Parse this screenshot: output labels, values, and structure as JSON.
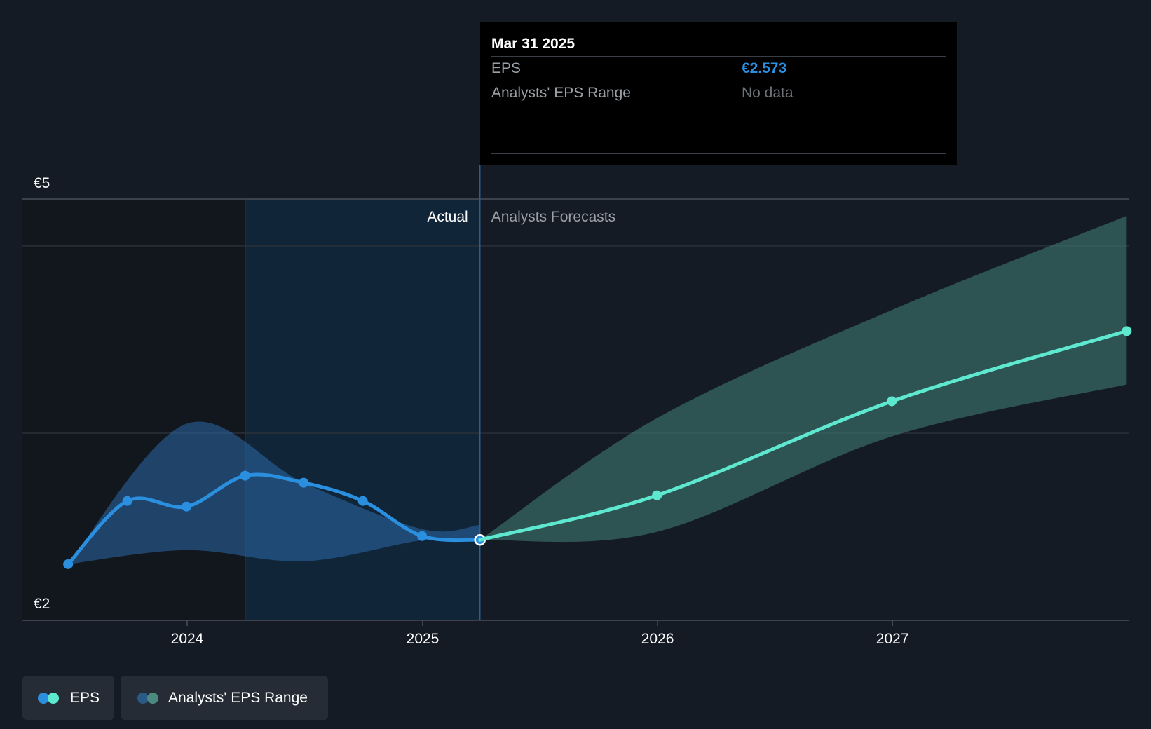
{
  "chart_data": {
    "type": "line",
    "y_axis": {
      "labels": [
        "€5",
        "€2"
      ],
      "ylim": [
        2,
        5
      ],
      "gridlines": [
        2,
        3.333,
        4.666,
        5
      ]
    },
    "x_axis": {
      "ticks": [
        "2024",
        "2025",
        "2026",
        "2027"
      ]
    },
    "regions": {
      "actual_label": "Actual",
      "forecast_label": "Analysts Forecasts"
    },
    "series": [
      {
        "name": "EPS",
        "color": "#2b8fe0",
        "points": [
          {
            "x": "2023-06-30",
            "y": 2.4
          },
          {
            "x": "2023-09-30",
            "y": 2.85
          },
          {
            "x": "2023-12-31",
            "y": 2.81
          },
          {
            "x": "2024-03-31",
            "y": 3.03
          },
          {
            "x": "2024-06-30",
            "y": 2.98
          },
          {
            "x": "2024-09-30",
            "y": 2.85
          },
          {
            "x": "2024-12-31",
            "y": 2.6
          },
          {
            "x": "2025-03-31",
            "y": 2.573
          }
        ]
      },
      {
        "name": "EPS Forecast",
        "color": "#5ee8d0",
        "points": [
          {
            "x": "2025-03-31",
            "y": 2.573
          },
          {
            "x": "2025-12-31",
            "y": 2.89
          },
          {
            "x": "2026-12-31",
            "y": 3.56
          },
          {
            "x": "2027-12-31",
            "y": 4.06
          }
        ]
      }
    ],
    "range_actual": [
      {
        "x": "2023-06-30",
        "low": 2.4,
        "high": 2.4
      },
      {
        "x": "2023-12-31",
        "low": 2.5,
        "high": 3.4
      },
      {
        "x": "2024-06-30",
        "low": 2.42,
        "high": 2.98
      },
      {
        "x": "2024-12-31",
        "low": 2.57,
        "high": 2.65
      },
      {
        "x": "2025-03-31",
        "low": 2.573,
        "high": 2.68
      }
    ],
    "range_forecast": [
      {
        "x": "2025-03-31",
        "low": 2.573,
        "high": 2.573
      },
      {
        "x": "2025-12-31",
        "low": 2.63,
        "high": 3.44
      },
      {
        "x": "2026-12-31",
        "low": 3.31,
        "high": 4.21
      },
      {
        "x": "2027-12-31",
        "low": 3.68,
        "high": 4.88
      }
    ]
  },
  "tooltip": {
    "date": "Mar 31 2025",
    "eps_label": "EPS",
    "eps_value": "€2.573",
    "range_label": "Analysts' EPS Range",
    "range_value": "No data"
  },
  "legend": {
    "eps_label": "EPS",
    "range_label": "Analysts' EPS Range",
    "eps_colors": [
      "#2b8fe0",
      "#5ee8d0"
    ],
    "range_colors": [
      "#2a5a86",
      "#4a8a80"
    ]
  }
}
